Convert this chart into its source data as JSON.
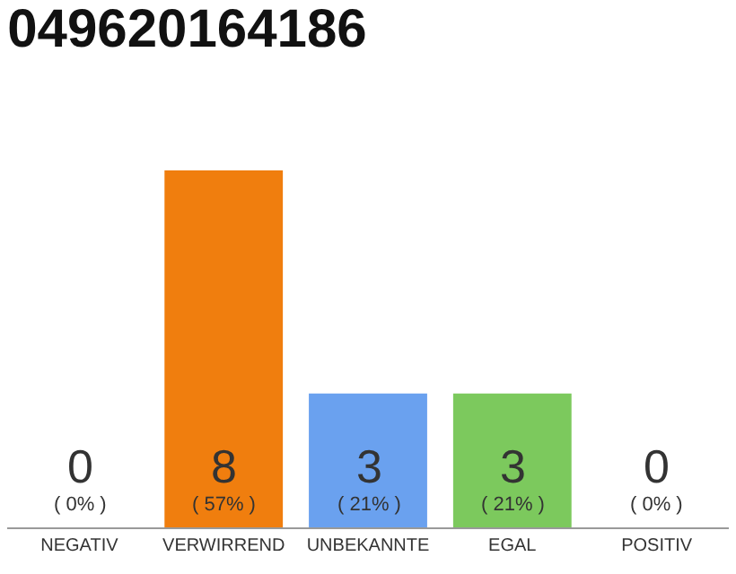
{
  "chart_data": {
    "type": "bar",
    "title": "049620164186",
    "categories": [
      "NEGATIV",
      "VERWIRREND",
      "UNBEKANNTE",
      "EGAL",
      "POSITIV"
    ],
    "values": [
      0,
      8,
      3,
      3,
      0
    ],
    "colors": [
      "#cccccc",
      "#f07e0e",
      "#6aa1ef",
      "#7cc95d",
      "#cccccc"
    ],
    "value_labels": [
      "0\n( 0% )",
      "8\n( 57% )",
      "3\n( 21% )",
      "3\n( 21% )",
      "0\n( 0% )"
    ],
    "ylim": [
      0,
      8
    ],
    "tick_labels": "x"
  }
}
